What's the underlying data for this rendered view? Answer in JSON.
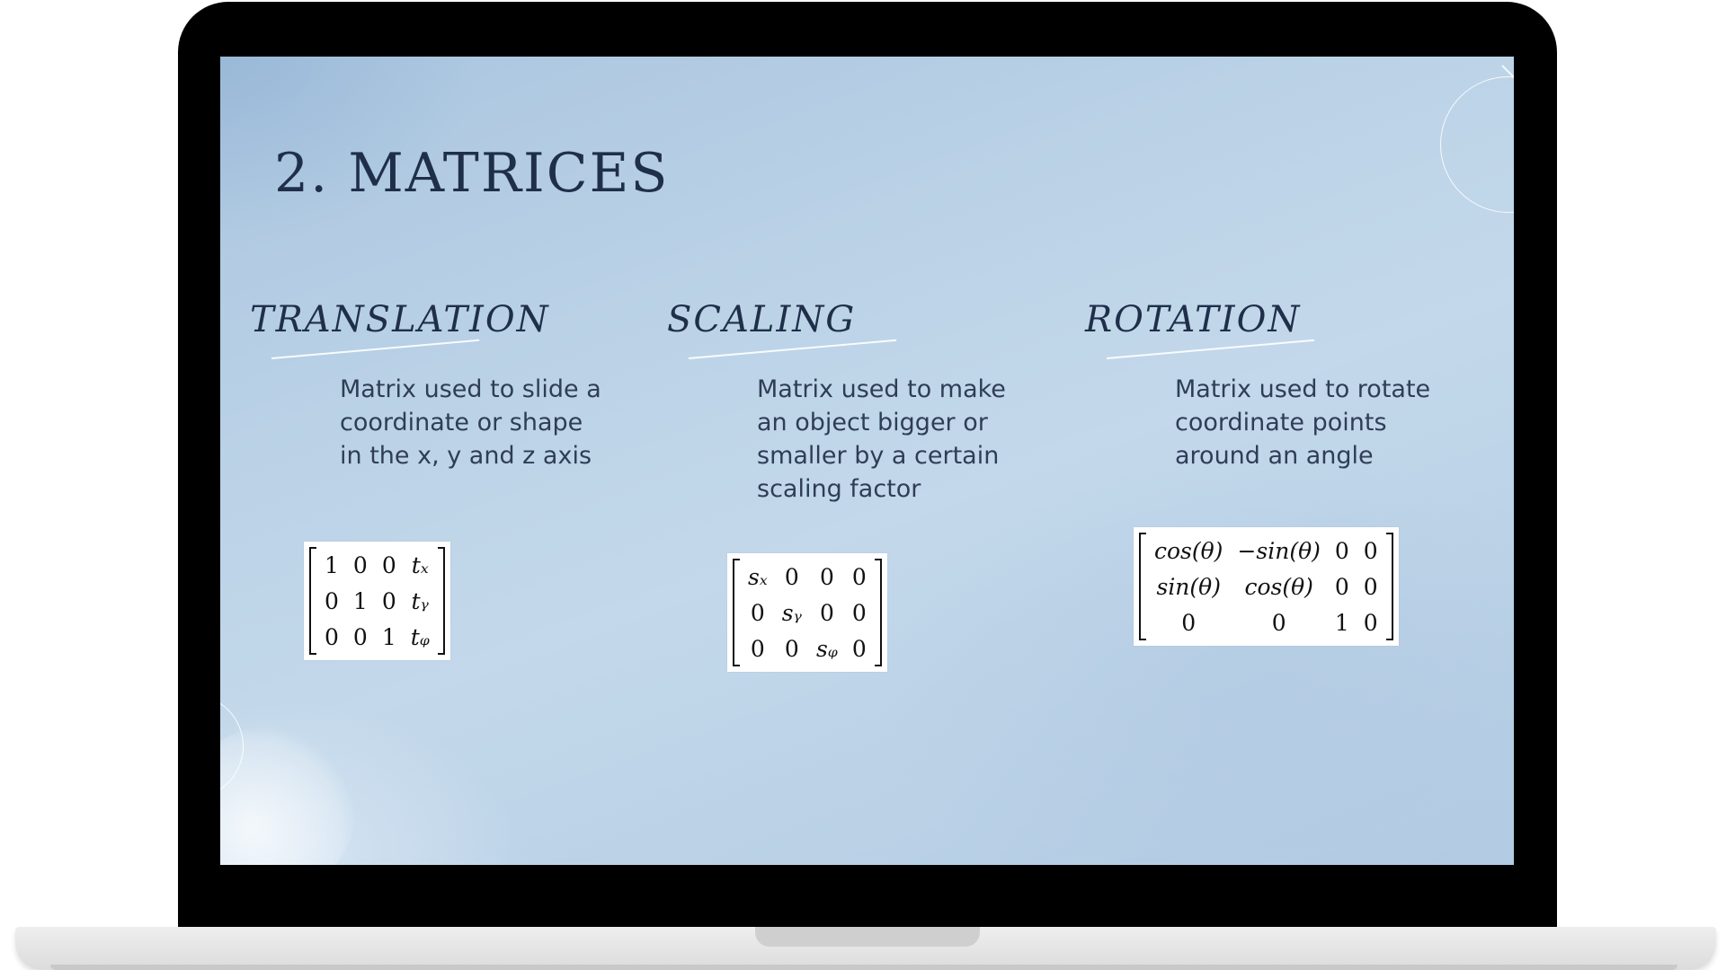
{
  "slide": {
    "title": "2. MATRICES",
    "columns": [
      {
        "heading": "TRANSLATION",
        "description": "Matrix used to slide a coordinate or shape in the x, y and z axis",
        "matrix": [
          [
            "1",
            "0",
            "0",
            "tₓ"
          ],
          [
            "0",
            "1",
            "0",
            "tᵧ"
          ],
          [
            "0",
            "0",
            "1",
            "tᵩ"
          ]
        ]
      },
      {
        "heading": "SCALING",
        "description": "Matrix used to make an object bigger or smaller by a certain scaling factor",
        "matrix": [
          [
            "sₓ",
            "0",
            "0",
            "0"
          ],
          [
            "0",
            "sᵧ",
            "0",
            "0"
          ],
          [
            "0",
            "0",
            "sᵩ",
            "0"
          ]
        ]
      },
      {
        "heading": "ROTATION",
        "description": "Matrix used to rotate coordinate points around an angle",
        "matrix": [
          [
            "cos(θ)",
            "−sin(θ)",
            "0",
            "0"
          ],
          [
            "sin(θ)",
            "cos(θ)",
            "0",
            "0"
          ],
          [
            "0",
            "0",
            "1",
            "0"
          ]
        ]
      }
    ]
  },
  "colors": {
    "bezel": "#000000",
    "text_dark": "#1f2f4a",
    "slide_background": "#bcd3e7"
  }
}
